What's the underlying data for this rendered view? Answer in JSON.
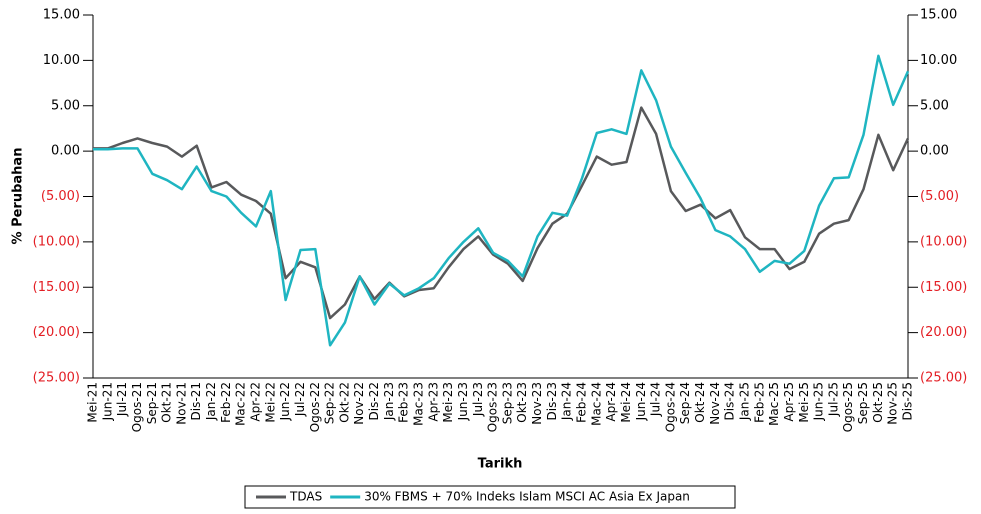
{
  "chart_data": {
    "type": "line",
    "x_label": "Tarikh",
    "y_label": "% Perubahan",
    "categories": [
      "Mei-21",
      "Jun-21",
      "Jul-21",
      "Ogos-21",
      "Sep-21",
      "Okt-21",
      "Nov-21",
      "Dis-21",
      "Jan-22",
      "Feb-22",
      "Mac-22",
      "Apr-22",
      "Mei-22",
      "Jun-22",
      "Jul-22",
      "Ogos-22",
      "Sep-22",
      "Okt-22",
      "Nov-22",
      "Dis-22",
      "Jan-23",
      "Feb-23",
      "Mac-23",
      "Apr-23",
      "Mei-23",
      "Jun-23",
      "Jul-23",
      "Ogos-23",
      "Sep-23",
      "Okt-23",
      "Nov-23",
      "Dis-23",
      "Jan-24",
      "Feb-24",
      "Mac-24",
      "Apr-24",
      "Mei-24",
      "Jun-24",
      "Jul-24",
      "Ogos-24",
      "Sep-24",
      "Okt-24",
      "Nov-24",
      "Dis-24",
      "Jan-25",
      "Feb-25",
      "Mac-25",
      "Apr-25",
      "Mei-25",
      "Jun-25",
      "Jul-25",
      "Ogos-25",
      "Sep-25",
      "Okt-25",
      "Nov-25",
      "Dis-25"
    ],
    "series": [
      {
        "name": "TDAS",
        "color": "#58595b",
        "values": [
          0.3,
          0.3,
          0.9,
          1.4,
          0.9,
          0.5,
          -0.6,
          0.6,
          -4.0,
          -3.4,
          -4.8,
          -5.5,
          -6.9,
          -14.0,
          -12.2,
          -12.8,
          -18.4,
          -16.9,
          -13.8,
          -16.3,
          -14.5,
          -16.0,
          -15.3,
          -15.1,
          -12.8,
          -10.8,
          -9.4,
          -11.4,
          -12.4,
          -14.3,
          -10.7,
          -8.0,
          -6.9,
          -3.8,
          -0.6,
          -1.5,
          -1.2,
          4.8,
          1.9,
          -4.4,
          -6.6,
          -5.9,
          -7.4,
          -6.5,
          -9.5,
          -10.8,
          -10.8,
          -13.0,
          -12.2,
          -9.1,
          -8.0,
          -7.6,
          -4.2,
          1.8,
          -2.1,
          1.4
        ]
      },
      {
        "name": "30% FBMS + 70% Indeks Islam MSCI AC Asia Ex Japan",
        "color": "#1fb5c1",
        "values": [
          0.2,
          0.2,
          0.3,
          0.3,
          -2.5,
          -3.2,
          -4.2,
          -1.7,
          -4.4,
          -5.0,
          -6.8,
          -8.3,
          -4.4,
          -16.4,
          -10.9,
          -10.8,
          -21.4,
          -18.9,
          -13.8,
          -16.9,
          -14.6,
          -15.9,
          -15.1,
          -14.0,
          -11.8,
          -10.0,
          -8.5,
          -11.2,
          -12.1,
          -13.8,
          -9.4,
          -6.8,
          -7.1,
          -3.0,
          2.0,
          2.4,
          1.9,
          8.9,
          5.6,
          0.5,
          -2.4,
          -5.2,
          -8.7,
          -9.4,
          -10.8,
          -13.3,
          -12.1,
          -12.4,
          -11.0,
          -6.0,
          -3.0,
          -2.9,
          1.8,
          10.5,
          5.1,
          8.8
        ]
      }
    ],
    "ylim": [
      -25,
      15
    ],
    "yticks": [
      {
        "value": -25,
        "label": "(25.00)"
      },
      {
        "value": -20,
        "label": "(20.00)"
      },
      {
        "value": -15,
        "label": "(15.00)"
      },
      {
        "value": -10,
        "label": "(10.00)"
      },
      {
        "value": -5,
        "label": "(5.00)"
      },
      {
        "value": 0,
        "label": "0.00"
      },
      {
        "value": 5,
        "label": "5.00"
      },
      {
        "value": 10,
        "label": "10.00"
      },
      {
        "value": 15,
        "label": "15.00"
      }
    ],
    "negative_label_color": "#e31e24",
    "legend": "bottom"
  }
}
